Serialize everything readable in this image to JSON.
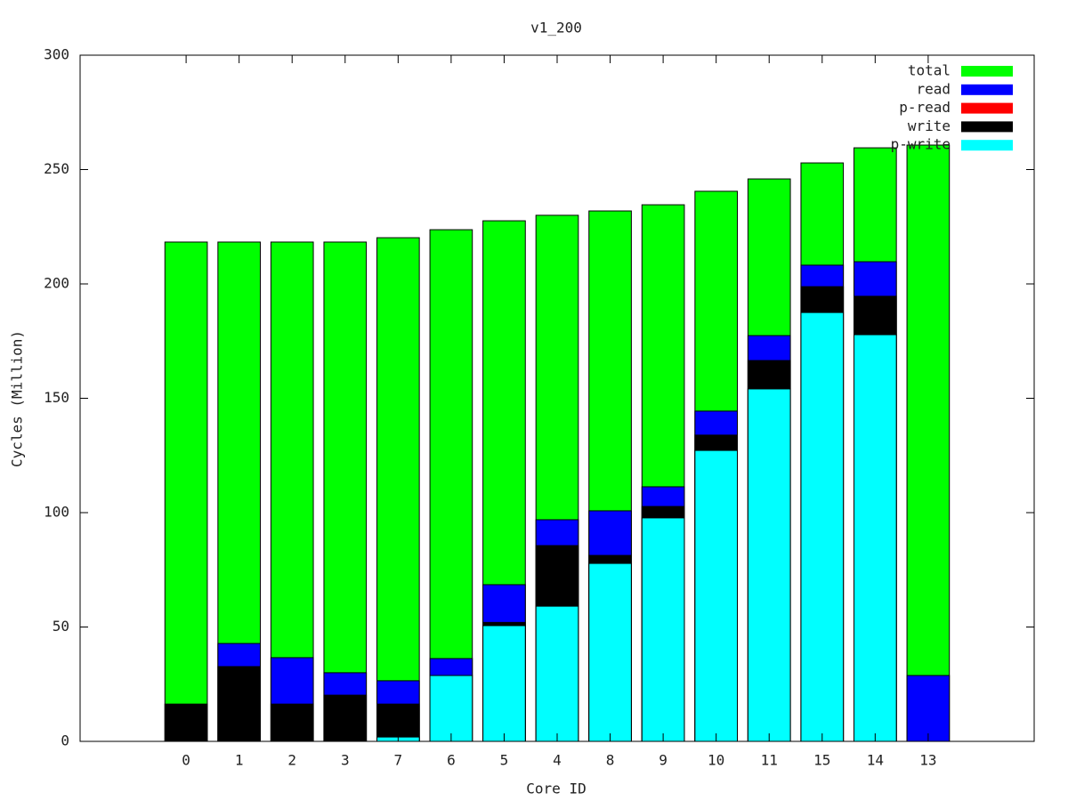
{
  "chart_data": {
    "type": "bar",
    "title": "v1_200",
    "x_label": "Core ID",
    "y_label": "Cycles (Million)",
    "categories": [
      "0",
      "1",
      "2",
      "3",
      "7",
      "6",
      "5",
      "4",
      "8",
      "9",
      "10",
      "11",
      "15",
      "14",
      "13"
    ],
    "series": [
      {
        "name": "total",
        "color": "#00ff00",
        "values": [
          218.3,
          218.3,
          218.3,
          218.3,
          220.2,
          223.7,
          227.6,
          230,
          231.9,
          234.6,
          240.5,
          245.9,
          252.9,
          259.5,
          260.7
        ]
      },
      {
        "name": "read",
        "color": "#0000ff",
        "values": [
          null,
          42.8,
          36.6,
          30,
          26.5,
          36.2,
          68.5,
          96.9,
          100.8,
          111.3,
          144.4,
          177.4,
          208.2,
          209.7,
          28.8
        ]
      },
      {
        "name": "p-read",
        "color": "#ff0000",
        "values": [
          null,
          null,
          null,
          null,
          null,
          null,
          null,
          null,
          null,
          null,
          null,
          null,
          null,
          null,
          null
        ]
      },
      {
        "name": "write",
        "color": "#000000",
        "values": [
          16.3,
          32.7,
          16.3,
          20.2,
          16.3,
          null,
          52,
          85.6,
          81.3,
          102.7,
          133.9,
          166.5,
          198.8,
          194.6,
          null
        ]
      },
      {
        "name": "p-write",
        "color": "#00ffff",
        "values": [
          null,
          null,
          null,
          null,
          1.9,
          28.8,
          50.6,
          59.1,
          77.8,
          97.7,
          127.2,
          154.1,
          187.5,
          177.8,
          null
        ]
      }
    ],
    "ylim": [
      0,
      300
    ],
    "yticks": [
      0,
      50,
      100,
      150,
      200,
      250,
      300
    ],
    "legend": "top-right"
  }
}
